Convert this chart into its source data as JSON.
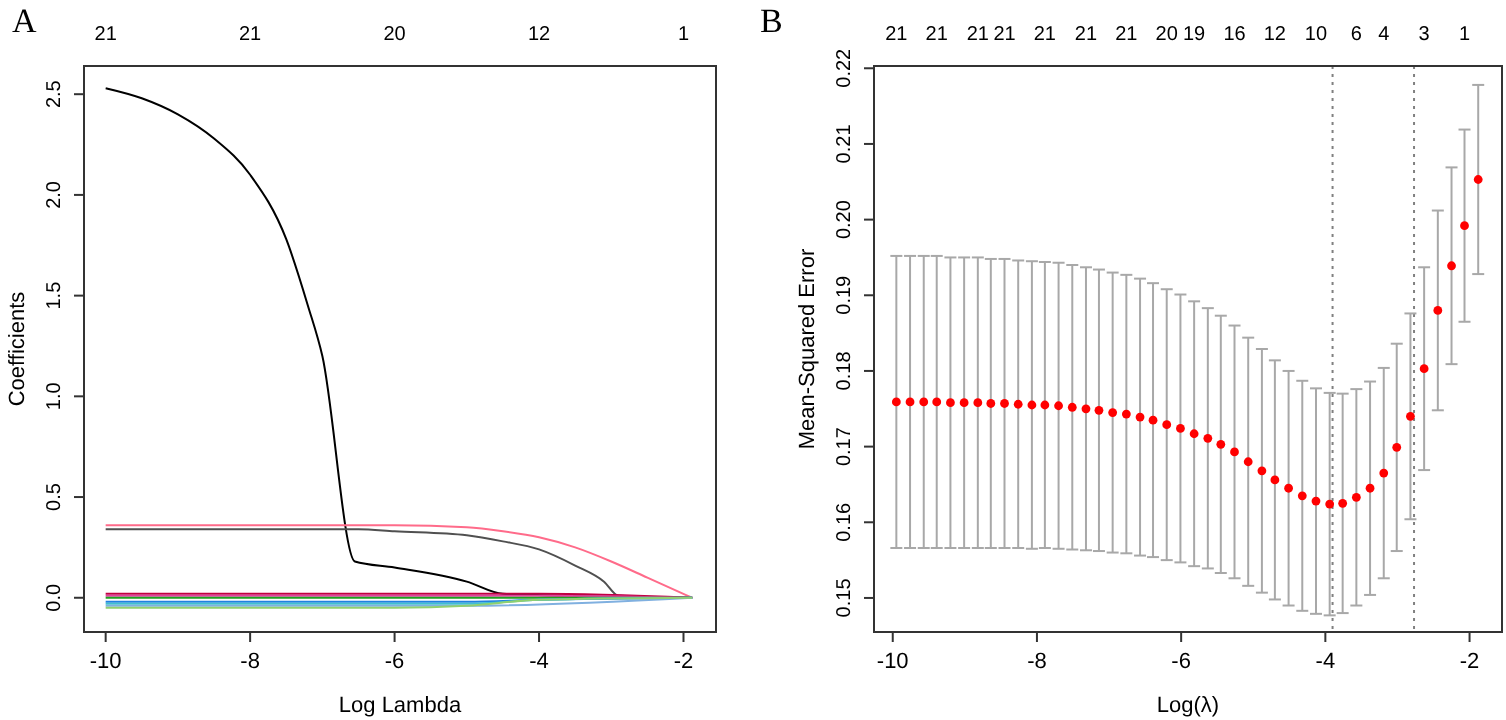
{
  "chart_data": [
    {
      "type": "line",
      "title": "A",
      "xlabel": "Log Lambda",
      "ylabel": "Coefficients",
      "xlim": [
        -10.3,
        -1.55
      ],
      "ylim": [
        -0.17,
        2.64
      ],
      "xticks": [
        -10,
        -8,
        -6,
        -4,
        -2
      ],
      "yticks": [
        {
          "value": 0,
          "label": "0.0"
        },
        {
          "value": 0.5,
          "label": "0.5"
        },
        {
          "value": 1,
          "label": "1.0"
        },
        {
          "value": 1.5,
          "label": "1.5"
        },
        {
          "value": 2,
          "label": "2.0"
        },
        {
          "value": 2.5,
          "label": "2.5"
        }
      ],
      "annotations": [
        "21",
        "21",
        "20",
        "12",
        "1"
      ],
      "marker": "none",
      "line_style": "solid",
      "series": [
        {
          "color": "#000000",
          "x": [
            -10,
            -9.5,
            -9,
            -8.5,
            -8,
            -7.5,
            -7.2,
            -7,
            -6.55,
            -6,
            -5,
            -4.5,
            -1.88
          ],
          "values": [
            2.53,
            2.48,
            2.4,
            2.28,
            2.1,
            1.78,
            1.45,
            1.2,
            0.18,
            0.15,
            0.08,
            0.02,
            0
          ]
        },
        {
          "color": "#ff6b8a",
          "x": [
            -10,
            -6,
            -5,
            -4.5,
            -4,
            -3.5,
            -3,
            -2.5,
            -1.88
          ],
          "values": [
            0.36,
            0.36,
            0.35,
            0.33,
            0.3,
            0.25,
            0.18,
            0.1,
            0
          ]
        },
        {
          "color": "#505050",
          "x": [
            -10,
            -6.5,
            -6,
            -5,
            -4.5,
            -4,
            -3.5,
            -3.1,
            -2.9,
            -1.88
          ],
          "values": [
            0.34,
            0.34,
            0.33,
            0.31,
            0.28,
            0.24,
            0.16,
            0.08,
            0.01,
            0
          ]
        },
        {
          "color": "#c00040",
          "x": [
            -10,
            -4,
            -1.88
          ],
          "values": [
            0.02,
            0.02,
            0
          ]
        },
        {
          "color": "#e040a0",
          "x": [
            -10,
            -4,
            -1.88
          ],
          "values": [
            0.01,
            0.01,
            0
          ]
        },
        {
          "color": "#20a020",
          "x": [
            -10,
            -4,
            -1.88
          ],
          "values": [
            0,
            0,
            0
          ]
        },
        {
          "color": "#2080e0",
          "x": [
            -10,
            -5,
            -4,
            -1.88
          ],
          "values": [
            -0.02,
            -0.02,
            -0.01,
            0
          ]
        },
        {
          "color": "#40c0d0",
          "x": [
            -10,
            -5,
            -4,
            -1.88
          ],
          "values": [
            -0.03,
            -0.03,
            -0.01,
            0
          ]
        },
        {
          "color": "#80b0e0",
          "x": [
            -10,
            -5,
            -1.88
          ],
          "values": [
            -0.04,
            -0.04,
            0
          ]
        },
        {
          "color": "#90d070",
          "x": [
            -10,
            -6,
            -5,
            -4,
            -1.88
          ],
          "values": [
            -0.05,
            -0.05,
            -0.04,
            -0.01,
            0
          ]
        }
      ]
    },
    {
      "type": "scatter",
      "title": "B",
      "xlabel": "Log(λ)",
      "ylabel": "Mean-Squared Error",
      "xlim": [
        -10.26,
        -1.55
      ],
      "ylim": [
        0.1455,
        0.2203
      ],
      "xticks": [
        -10,
        -8,
        -6,
        -4,
        -2
      ],
      "yticks": [
        {
          "value": 0.15,
          "label": "0.15"
        },
        {
          "value": 0.16,
          "label": "0.16"
        },
        {
          "value": 0.17,
          "label": "0.17"
        },
        {
          "value": 0.18,
          "label": "0.18"
        },
        {
          "value": 0.19,
          "label": "0.19"
        },
        {
          "value": 0.2,
          "label": "0.20"
        },
        {
          "value": 0.21,
          "label": "0.21"
        },
        {
          "value": 0.22,
          "label": "0.22"
        }
      ],
      "annotations": [
        "21",
        "21",
        "21",
        "21",
        "21",
        "21",
        "21",
        "20",
        "19",
        "16",
        "12",
        "10",
        "6",
        "4",
        "3",
        "1"
      ],
      "marker": "circle",
      "ref_lines": [
        {
          "axis": "x",
          "value": -3.9,
          "color": "#808080",
          "line_style": "dotted"
        },
        {
          "axis": "x",
          "value": -2.77,
          "color": "#808080",
          "line_style": "dotted"
        }
      ],
      "series": [
        {
          "color": "#ff0000",
          "x": [
            -9.95,
            -9.76,
            -9.57,
            -9.39,
            -9.2,
            -9.01,
            -8.82,
            -8.64,
            -8.45,
            -8.26,
            -8.07,
            -7.89,
            -7.7,
            -7.51,
            -7.32,
            -7.14,
            -6.95,
            -6.76,
            -6.57,
            -6.39,
            -6.2,
            -6.01,
            -5.82,
            -5.63,
            -5.45,
            -5.26,
            -5.07,
            -4.88,
            -4.7,
            -4.51,
            -4.32,
            -4.13,
            -3.94,
            -3.76,
            -3.57,
            -3.38,
            -3.19,
            -3.01,
            -2.82,
            -2.63,
            -2.44,
            -2.25,
            -2.07,
            -1.88
          ],
          "values": [
            0.1759,
            0.1759,
            0.1759,
            0.1759,
            0.1758,
            0.1758,
            0.1758,
            0.1757,
            0.1757,
            0.1756,
            0.1755,
            0.1755,
            0.1754,
            0.1752,
            0.175,
            0.1748,
            0.1745,
            0.1743,
            0.1739,
            0.1735,
            0.1729,
            0.1724,
            0.1717,
            0.1711,
            0.1703,
            0.1693,
            0.168,
            0.1668,
            0.1656,
            0.1645,
            0.1635,
            0.1628,
            0.1624,
            0.1625,
            0.1633,
            0.1645,
            0.1665,
            0.1699,
            0.174,
            0.1803,
            0.188,
            0.1939,
            0.1992,
            0.2053
          ],
          "errors": [
            0.0193,
            0.0193,
            0.0193,
            0.0193,
            0.0192,
            0.0192,
            0.0192,
            0.0191,
            0.0191,
            0.019,
            0.019,
            0.0189,
            0.0189,
            0.0188,
            0.0187,
            0.0186,
            0.0185,
            0.0184,
            0.0183,
            0.0181,
            0.0179,
            0.0177,
            0.0175,
            0.0172,
            0.017,
            0.0167,
            0.0164,
            0.0161,
            0.0158,
            0.0155,
            0.0152,
            0.0149,
            0.0147,
            0.0145,
            0.0143,
            0.0141,
            0.0139,
            0.0137,
            0.0136,
            0.0134,
            0.0132,
            0.013,
            0.0127,
            0.0125
          ]
        }
      ]
    }
  ]
}
